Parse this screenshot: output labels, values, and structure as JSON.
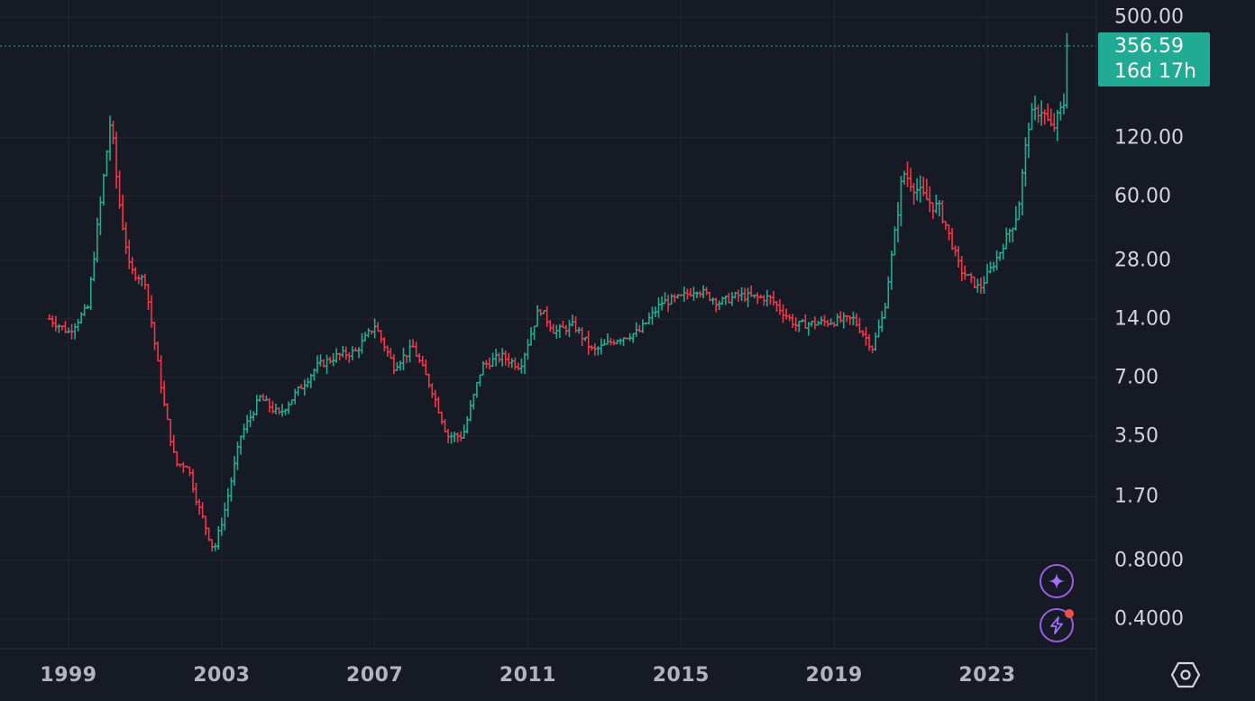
{
  "colors": {
    "background": "#161a25",
    "grid": "#232733",
    "up": "#22ab94",
    "down": "#f23645",
    "price_line": "#22ab94",
    "ai_accent": "#9b5de5"
  },
  "axis": {
    "y_labels": [
      "500.00",
      "120.00",
      "60.00",
      "28.00",
      "14.00",
      "7.00",
      "3.50",
      "1.70",
      "0.8000",
      "0.4000"
    ],
    "x_labels": [
      "1999",
      "2003",
      "2007",
      "2011",
      "2015",
      "2019",
      "2023"
    ]
  },
  "price_badge": {
    "price": "356.59",
    "countdown": "16d 17h"
  },
  "icons": {
    "assistant": "sparkle-icon",
    "alerts": "lightning-icon",
    "settings": "hexagon-settings-icon"
  },
  "chart_data": {
    "type": "line",
    "style": "monthly price bars (OHLC), log scale",
    "x_unit": "year",
    "y_scale": "log",
    "grid": true,
    "ylim": [
      0.3,
      620
    ],
    "xlim": [
      1998.3,
      2025.5
    ],
    "last_price": 356.59,
    "series": [
      {
        "x": [
          1998.5,
          1999.0,
          1999.5,
          1999.9,
          2000.1,
          2000.3,
          2000.6,
          2001.0,
          2001.5,
          2001.8,
          2002.1,
          2002.4,
          2002.8,
          2003.1,
          2003.5,
          2004.0,
          2004.5,
          2005.0,
          2005.5,
          2006.0,
          2006.5,
          2007.0,
          2007.5,
          2008.0,
          2008.5,
          2008.9,
          2009.3,
          2009.8,
          2010.3,
          2010.8,
          2011.3,
          2011.7,
          2012.2,
          2012.7,
          2013.3,
          2013.9,
          2014.5,
          2015.0,
          2015.4,
          2016.0,
          2016.5,
          2017.0,
          2017.3,
          2018.0,
          2018.8,
          2019.5,
          2020.0,
          2020.3,
          2020.8,
          2021.3,
          2021.8,
          2022.3,
          2022.8,
          2023.3,
          2023.8,
          2024.1,
          2024.4,
          2024.7,
          2025.0,
          2025.1
        ],
        "y": [
          14.0,
          12.0,
          16.0,
          70.0,
          150.0,
          60.0,
          25.0,
          22.0,
          5.0,
          2.5,
          2.5,
          1.5,
          0.9,
          1.5,
          3.5,
          5.5,
          4.5,
          6.0,
          8.0,
          9.0,
          9.5,
          13.0,
          8.0,
          10.0,
          6.0,
          3.5,
          3.5,
          8.0,
          9.0,
          8.0,
          16.0,
          12.0,
          13.0,
          9.5,
          11.0,
          12.0,
          17.0,
          18.0,
          20.0,
          17.0,
          18.5,
          18.0,
          18.0,
          13.0,
          13.5,
          14.0,
          10.0,
          15.0,
          80.0,
          60.0,
          50.0,
          25.0,
          20.0,
          30.0,
          50.0,
          150.0,
          170.0,
          130.0,
          180.0,
          356.59
        ]
      }
    ]
  }
}
